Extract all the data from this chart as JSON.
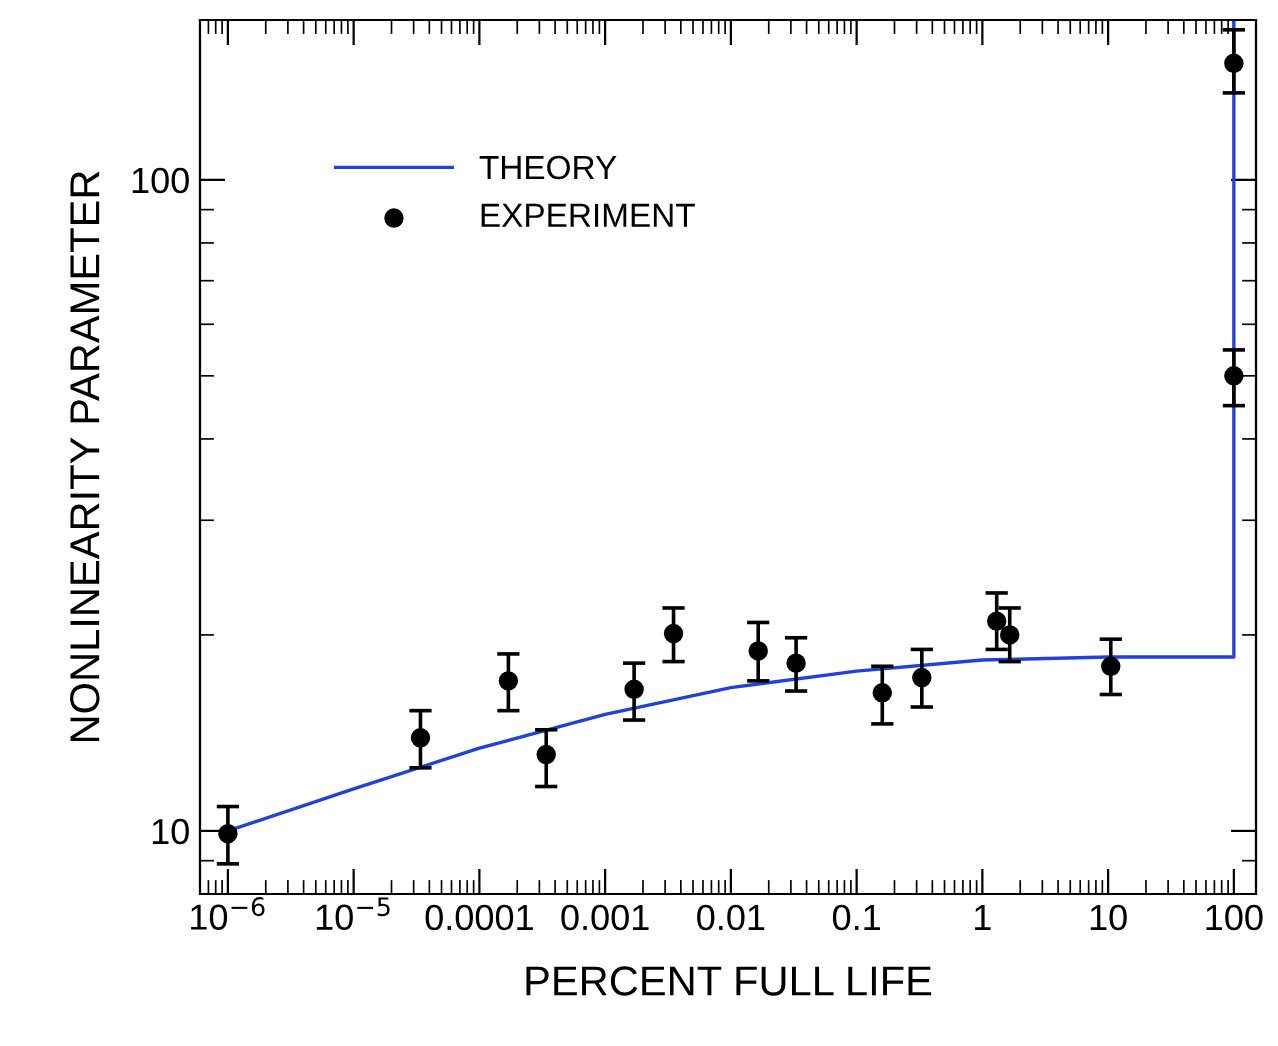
{
  "chart_data": {
    "type": "scatter",
    "xlabel": "PERCENT FULL LIFE",
    "ylabel": "NONLINEARITY PARAMETER",
    "log": "xy",
    "xlim": [
      6e-07,
      150
    ],
    "ylim": [
      8,
      176
    ],
    "xticks": [
      {
        "value": 1e-06,
        "label": "10$^{−6}$"
      },
      {
        "value": 1e-05,
        "label": "10$^{−5}$"
      },
      0.0001,
      0.001,
      0.01,
      0.1,
      1,
      10,
      100
    ],
    "yticks": [
      10,
      100
    ],
    "legend": "top left",
    "grid": false,
    "series": [
      {
        "name": "THEORY",
        "type": "line",
        "color": "#2040e0",
        "marker": "none",
        "line_style": "solid",
        "x": [
          1e-06,
          1e-05,
          0.0001,
          0.001,
          0.01,
          0.1,
          1,
          10,
          100,
          100
        ],
        "values": [
          10.0,
          11.6,
          13.4,
          15.1,
          16.6,
          17.6,
          18.3,
          18.5,
          18.5,
          176
        ]
      },
      {
        "name": "EXPERIMENT",
        "color": "#000000",
        "marker": "circle",
        "x": [
          1e-06,
          3.4e-05,
          0.00017,
          0.00034,
          0.0017,
          0.0035,
          0.0165,
          0.033,
          0.16,
          0.33,
          1.3,
          1.65,
          10.5,
          100,
          100
        ],
        "values": [
          9.9,
          13.9,
          17.0,
          13.1,
          16.5,
          20.1,
          18.9,
          18.1,
          16.3,
          17.2,
          21.0,
          20.0,
          17.9,
          151,
          50.0
        ],
        "errors": [
          [
            8.9,
            10.9
          ],
          [
            12.5,
            15.3
          ],
          [
            15.3,
            18.7
          ],
          [
            11.7,
            14.3
          ],
          [
            14.8,
            18.1
          ],
          [
            18.2,
            22.0
          ],
          [
            17.0,
            20.9
          ],
          [
            16.4,
            19.8
          ],
          [
            14.6,
            17.9
          ],
          [
            15.5,
            19.0
          ],
          [
            19.0,
            23.2
          ],
          [
            18.2,
            22.0
          ],
          [
            16.2,
            19.7
          ],
          [
            136,
            170
          ],
          [
            45.0,
            54.8
          ]
        ]
      }
    ]
  }
}
